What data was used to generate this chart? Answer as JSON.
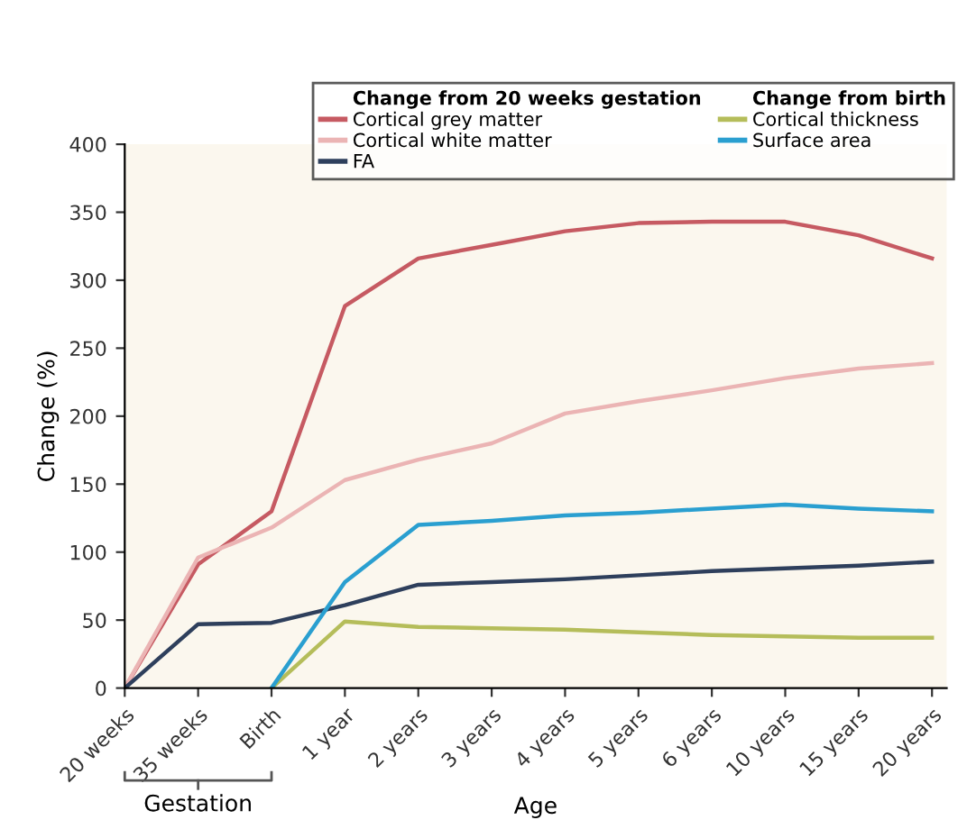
{
  "chart_data": {
    "type": "line",
    "xlabel": "Age",
    "ylabel": "Change (%)",
    "categories": [
      "20 weeks",
      "35 weeks",
      "Birth",
      "1 year",
      "2 years",
      "3 years",
      "4 years",
      "5 years",
      "6 years",
      "10 years",
      "15 years",
      "20 years"
    ],
    "series": [
      {
        "name": "Cortical grey matter",
        "color": "#c65a62",
        "values": [
          0,
          91,
          130,
          281,
          316,
          326,
          336,
          342,
          343,
          343,
          333,
          316
        ]
      },
      {
        "name": "Cortical white matter",
        "color": "#ebb4b4",
        "values": [
          0,
          96,
          118,
          153,
          168,
          180,
          202,
          211,
          219,
          228,
          235,
          239
        ]
      },
      {
        "name": "FA",
        "color": "#2e3f5c",
        "values": [
          0,
          47,
          48,
          61,
          76,
          78,
          80,
          83,
          86,
          88,
          90,
          93
        ]
      },
      {
        "name": "Cortical thickness",
        "color": "#b5bd5a",
        "values": [
          null,
          null,
          0,
          49,
          45,
          44,
          43,
          41,
          39,
          38,
          37,
          37
        ]
      },
      {
        "name": "Surface area",
        "color": "#2a9fd0",
        "values": [
          null,
          null,
          0,
          78,
          120,
          123,
          127,
          129,
          132,
          135,
          132,
          130
        ]
      }
    ],
    "ylim": [
      0,
      400
    ],
    "yticks": [
      0,
      50,
      100,
      150,
      200,
      250,
      300,
      350,
      400
    ],
    "legend": "top right",
    "legend_title": "Change from 20 weeks gestation",
    "annotations": [
      "Change from birth",
      "Gestation"
    ]
  }
}
